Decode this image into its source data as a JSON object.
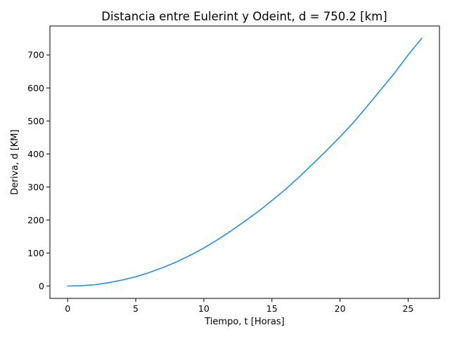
{
  "chart_data": {
    "type": "line",
    "title": "Distancia entre Eulerint y Odeint, d = 750.2 [km]",
    "xlabel": "Tiempo, t [Horas]",
    "ylabel": "Deriva, d [KM]",
    "xlim": [
      -1.3,
      27.3
    ],
    "ylim": [
      -37.5,
      787.7
    ],
    "xticks": [
      0,
      5,
      10,
      15,
      20,
      25
    ],
    "xtick_labels": [
      "0",
      "5",
      "10",
      "15",
      "20",
      "25"
    ],
    "yticks": [
      0,
      100,
      200,
      300,
      400,
      500,
      600,
      700
    ],
    "ytick_labels": [
      "0",
      "100",
      "200",
      "300",
      "400",
      "500",
      "600",
      "700"
    ],
    "grid": false,
    "series": [
      {
        "color": "#1f8fe8",
        "x": [
          0,
          1,
          2,
          3,
          4,
          5,
          6,
          7,
          8,
          9,
          10,
          11,
          12,
          13,
          14,
          15,
          16,
          17,
          18,
          19,
          20,
          21,
          22,
          23,
          24,
          25,
          26
        ],
        "y": [
          0,
          1,
          4,
          10,
          18,
          28,
          41,
          56,
          73,
          93,
          115,
          140,
          167,
          196,
          226,
          259,
          293,
          330,
          370,
          410,
          452,
          496,
          545,
          595,
          645,
          700,
          750.2
        ]
      }
    ]
  }
}
